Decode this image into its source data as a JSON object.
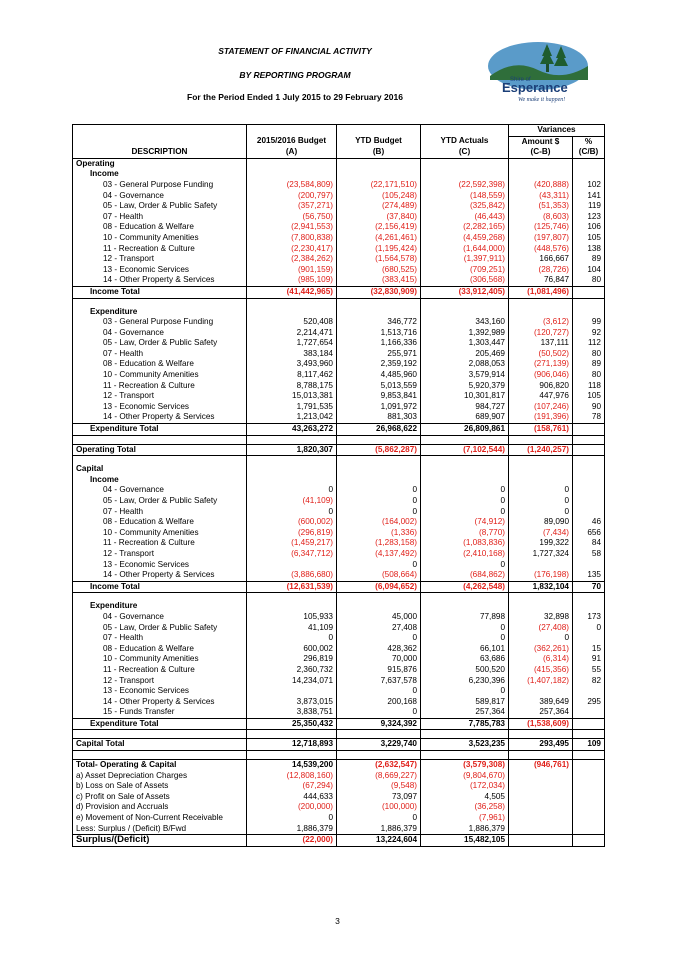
{
  "header": {
    "title": "STATEMENT OF FINANCIAL ACTIVITY",
    "subtitle": "BY REPORTING PROGRAM",
    "period": "For the Period Ended 1 July 2015 to 29 February 2016"
  },
  "logo": {
    "small": "Shire of",
    "name": "Esperance",
    "tagline": "We make it happen!"
  },
  "columns": {
    "variances": "Variances",
    "description": "DESCRIPTION",
    "budget": [
      "2015/2016 Budget",
      "(A)"
    ],
    "ytd_budget": [
      "YTD Budget",
      "(B)"
    ],
    "ytd_actuals": [
      "YTD Actuals",
      "(C)"
    ],
    "amount": [
      "Amount $",
      "(C-B)"
    ],
    "pct": [
      "%",
      "(C/B)"
    ]
  },
  "rows": [
    {
      "label": "Operating",
      "kind": "section"
    },
    {
      "label": "Income",
      "kind": "sub"
    },
    {
      "label": "03 - General Purpose Funding",
      "kind": "item",
      "v": [
        "(23,584,809)",
        "(22,171,510)",
        "(22,592,398)",
        "(420,888)",
        "102"
      ]
    },
    {
      "label": "04 - Governance",
      "kind": "item",
      "v": [
        "(200,797)",
        "(105,248)",
        "(148,559)",
        "(43,311)",
        "141"
      ]
    },
    {
      "label": "05 - Law, Order & Public Safety",
      "kind": "item",
      "v": [
        "(357,271)",
        "(274,489)",
        "(325,842)",
        "(51,353)",
        "119"
      ]
    },
    {
      "label": "07 - Health",
      "kind": "item",
      "v": [
        "(56,750)",
        "(37,840)",
        "(46,443)",
        "(8,603)",
        "123"
      ]
    },
    {
      "label": "08 - Education & Welfare",
      "kind": "item",
      "v": [
        "(2,941,553)",
        "(2,156,419)",
        "(2,282,165)",
        "(125,746)",
        "106"
      ]
    },
    {
      "label": "10 - Community Amenities",
      "kind": "item",
      "v": [
        "(7,800,838)",
        "(4,261,461)",
        "(4,459,268)",
        "(197,807)",
        "105"
      ]
    },
    {
      "label": "11 - Recreation & Culture",
      "kind": "item",
      "v": [
        "(2,230,417)",
        "(1,195,424)",
        "(1,644,000)",
        "(448,576)",
        "138"
      ]
    },
    {
      "label": "12 - Transport",
      "kind": "item",
      "v": [
        "(2,384,262)",
        "(1,564,578)",
        "(1,397,911)",
        "166,667",
        "89"
      ]
    },
    {
      "label": "13 - Economic Services",
      "kind": "item",
      "v": [
        "(901,159)",
        "(680,525)",
        "(709,251)",
        "(28,726)",
        "104"
      ]
    },
    {
      "label": "14 - Other Property & Services",
      "kind": "item",
      "v": [
        "(985,109)",
        "(383,415)",
        "(306,568)",
        "76,847",
        "80"
      ]
    },
    {
      "label": "Income Total",
      "kind": "total",
      "v": [
        "(41,442,965)",
        "(32,830,909)",
        "(33,912,405)",
        "(1,081,496)",
        ""
      ]
    },
    {
      "label": "",
      "kind": "blank"
    },
    {
      "label": "Expenditure",
      "kind": "sub"
    },
    {
      "label": "03 - General Purpose Funding",
      "kind": "item",
      "v": [
        "520,408",
        "346,772",
        "343,160",
        "(3,612)",
        "99"
      ]
    },
    {
      "label": "04 - Governance",
      "kind": "item",
      "v": [
        "2,214,471",
        "1,513,716",
        "1,392,989",
        "(120,727)",
        "92"
      ]
    },
    {
      "label": "05 - Law, Order & Public Safety",
      "kind": "item",
      "v": [
        "1,727,654",
        "1,166,336",
        "1,303,447",
        "137,111",
        "112"
      ]
    },
    {
      "label": "07 - Health",
      "kind": "item",
      "v": [
        "383,184",
        "255,971",
        "205,469",
        "(50,502)",
        "80"
      ]
    },
    {
      "label": "08 - Education & Welfare",
      "kind": "item",
      "v": [
        "3,493,960",
        "2,359,192",
        "2,088,053",
        "(271,139)",
        "89"
      ]
    },
    {
      "label": "10 - Community Amenities",
      "kind": "item",
      "v": [
        "8,117,462",
        "4,485,960",
        "3,579,914",
        "(906,046)",
        "80"
      ]
    },
    {
      "label": "11 - Recreation & Culture",
      "kind": "item",
      "v": [
        "8,788,175",
        "5,013,559",
        "5,920,379",
        "906,820",
        "118"
      ]
    },
    {
      "label": "12 - Transport",
      "kind": "item",
      "v": [
        "15,013,381",
        "9,853,841",
        "10,301,817",
        "447,976",
        "105"
      ]
    },
    {
      "label": "13 - Economic Services",
      "kind": "item",
      "v": [
        "1,791,535",
        "1,091,972",
        "984,727",
        "(107,246)",
        "90"
      ]
    },
    {
      "label": "14 - Other Property & Services",
      "kind": "item",
      "v": [
        "1,213,042",
        "881,303",
        "689,907",
        "(191,396)",
        "78"
      ]
    },
    {
      "label": "Expenditure Total",
      "kind": "total",
      "v": [
        "43,263,272",
        "26,968,622",
        "26,809,861",
        "(158,761)",
        ""
      ]
    },
    {
      "label": "",
      "kind": "blank"
    },
    {
      "label": "Operating Total",
      "kind": "grand",
      "v": [
        "1,820,307",
        "(5,862,287)",
        "(7,102,544)",
        "(1,240,257)",
        ""
      ]
    },
    {
      "label": "",
      "kind": "blank"
    },
    {
      "label": "Capital",
      "kind": "section"
    },
    {
      "label": "Income",
      "kind": "sub"
    },
    {
      "label": "04 - Governance",
      "kind": "item",
      "v": [
        "0",
        "0",
        "0",
        "0",
        ""
      ]
    },
    {
      "label": "05 - Law, Order & Public Safety",
      "kind": "item",
      "v": [
        "(41,109)",
        "0",
        "0",
        "0",
        ""
      ]
    },
    {
      "label": "07 - Health",
      "kind": "item",
      "v": [
        "0",
        "0",
        "0",
        "0",
        ""
      ]
    },
    {
      "label": "08 - Education & Welfare",
      "kind": "item",
      "v": [
        "(600,002)",
        "(164,002)",
        "(74,912)",
        "89,090",
        "46"
      ]
    },
    {
      "label": "10 - Community Amenities",
      "kind": "item",
      "v": [
        "(296,819)",
        "(1,336)",
        "(8,770)",
        "(7,434)",
        "656"
      ]
    },
    {
      "label": "11 - Recreation & Culture",
      "kind": "item",
      "v": [
        "(1,459,217)",
        "(1,283,158)",
        "(1,083,836)",
        "199,322",
        "84"
      ]
    },
    {
      "label": "12 - Transport",
      "kind": "item",
      "v": [
        "(6,347,712)",
        "(4,137,492)",
        "(2,410,168)",
        "1,727,324",
        "58"
      ]
    },
    {
      "label": "13 - Economic Services",
      "kind": "item",
      "v": [
        "",
        "0",
        "0",
        "",
        ""
      ]
    },
    {
      "label": "14 - Other Property & Services",
      "kind": "item",
      "v": [
        "(3,886,680)",
        "(508,664)",
        "(684,862)",
        "(176,198)",
        "135"
      ]
    },
    {
      "label": "Income Total",
      "kind": "total",
      "v": [
        "(12,631,539)",
        "(6,094,652)",
        "(4,262,548)",
        "1,832,104",
        "70"
      ]
    },
    {
      "label": "",
      "kind": "blank"
    },
    {
      "label": "Expenditure",
      "kind": "sub"
    },
    {
      "label": "04 - Governance",
      "kind": "item",
      "v": [
        "105,933",
        "45,000",
        "77,898",
        "32,898",
        "173"
      ]
    },
    {
      "label": "05 - Law, Order & Public Safety",
      "kind": "item",
      "v": [
        "41,109",
        "27,408",
        "0",
        "(27,408)",
        "0"
      ]
    },
    {
      "label": "07 - Health",
      "kind": "item",
      "v": [
        "0",
        "0",
        "0",
        "0",
        ""
      ]
    },
    {
      "label": "08 - Education & Welfare",
      "kind": "item",
      "v": [
        "600,002",
        "428,362",
        "66,101",
        "(362,261)",
        "15"
      ]
    },
    {
      "label": "10 - Community Amenities",
      "kind": "item",
      "v": [
        "296,819",
        "70,000",
        "63,686",
        "(6,314)",
        "91"
      ]
    },
    {
      "label": "11 - Recreation & Culture",
      "kind": "item",
      "v": [
        "2,360,732",
        "915,876",
        "500,520",
        "(415,356)",
        "55"
      ]
    },
    {
      "label": "12 - Transport",
      "kind": "item",
      "v": [
        "14,234,071",
        "7,637,578",
        "6,230,396",
        "(1,407,182)",
        "82"
      ]
    },
    {
      "label": "13 - Economic Services",
      "kind": "item",
      "v": [
        "",
        "0",
        "0",
        "",
        ""
      ]
    },
    {
      "label": "14 - Other Property & Services",
      "kind": "item",
      "v": [
        "3,873,015",
        "200,168",
        "589,817",
        "389,649",
        "295"
      ]
    },
    {
      "label": "15 - Funds Transfer",
      "kind": "item",
      "v": [
        "3,838,751",
        "0",
        "257,364",
        "257,364",
        ""
      ]
    },
    {
      "label": "Expenditure Total",
      "kind": "total",
      "v": [
        "25,350,432",
        "9,324,392",
        "7,785,783",
        "(1,538,609)",
        ""
      ]
    },
    {
      "label": "",
      "kind": "blank"
    },
    {
      "label": "Capital Total",
      "kind": "grand",
      "v": [
        "12,718,893",
        "3,229,740",
        "3,523,235",
        "293,495",
        "109"
      ]
    },
    {
      "label": "",
      "kind": "blank"
    },
    {
      "label": "Total- Operating & Capital",
      "kind": "top",
      "v": [
        "14,539,200",
        "(2,632,547)",
        "(3,579,308)",
        "(946,761)",
        ""
      ]
    },
    {
      "label": "a) Asset Depreciation Charges",
      "kind": "adj",
      "v": [
        "(12,808,160)",
        "(8,669,227)",
        "(9,804,670)",
        "",
        ""
      ]
    },
    {
      "label": "b) Loss on Sale of Assets",
      "kind": "adj",
      "v": [
        "(67,294)",
        "(9,548)",
        "(172,034)",
        "",
        ""
      ]
    },
    {
      "label": "c) Profit on Sale of Assets",
      "kind": "adj",
      "v": [
        "444,633",
        "73,097",
        "4,505",
        "",
        ""
      ]
    },
    {
      "label": "d) Provision and Accruals",
      "kind": "adj",
      "v": [
        "(200,000)",
        "(100,000)",
        "(36,258)",
        "",
        ""
      ]
    },
    {
      "label": "e) Movement of Non-Current Receivable",
      "kind": "adj",
      "v": [
        "0",
        "0",
        "(7,961)",
        "",
        ""
      ]
    },
    {
      "label": "Less: Surplus / (Deficit) B/Fwd",
      "kind": "adj",
      "v": [
        "1,886,379",
        "1,886,379",
        "1,886,379",
        "",
        ""
      ]
    },
    {
      "label": "Surplus/(Deficit)",
      "kind": "final",
      "v": [
        "(22,000)",
        "13,224,604",
        "15,482,105",
        "",
        ""
      ]
    }
  ],
  "page_number": "3"
}
